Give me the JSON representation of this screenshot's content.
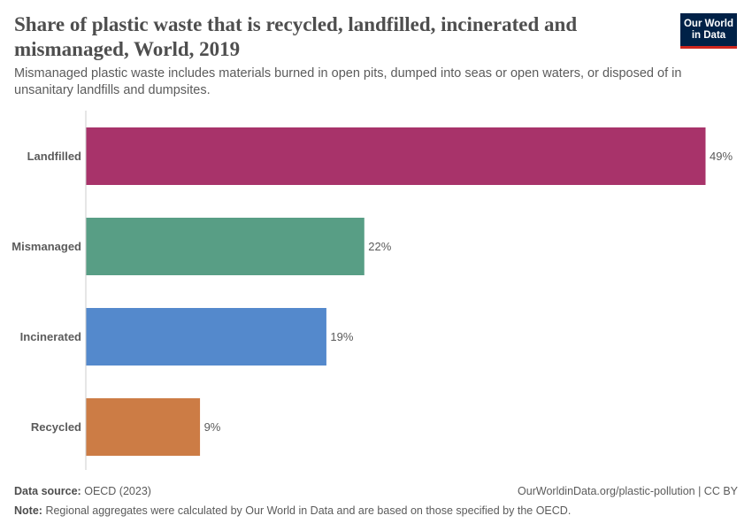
{
  "header": {
    "title": "Share of plastic waste that is recycled, landfilled, incinerated and mismanaged, World, 2019",
    "subtitle": "Mismanaged plastic waste includes materials burned in open pits, dumped into seas or open waters, or disposed of in unsanitary landfills and dumpsites.",
    "logo_line1": "Our World",
    "logo_line2": "in Data"
  },
  "chart_data": {
    "type": "bar",
    "orientation": "horizontal",
    "categories": [
      "Landfilled",
      "Mismanaged",
      "Incinerated",
      "Recycled"
    ],
    "values": [
      49,
      22,
      19,
      9
    ],
    "value_labels": [
      "49%",
      "22%",
      "19%",
      "9%"
    ],
    "colors": [
      "#a8336a",
      "#589e85",
      "#5489cc",
      "#cc7c45"
    ],
    "unit": "%",
    "xlim": [
      0,
      49
    ],
    "grid": false
  },
  "footer": {
    "source_label": "Data source:",
    "source_value": "OECD (2023)",
    "url": "OurWorldinData.org/plastic-pollution | CC BY",
    "note_label": "Note:",
    "note_value": "Regional aggregates were calculated by Our World in Data and are based on those specified by the OECD."
  }
}
